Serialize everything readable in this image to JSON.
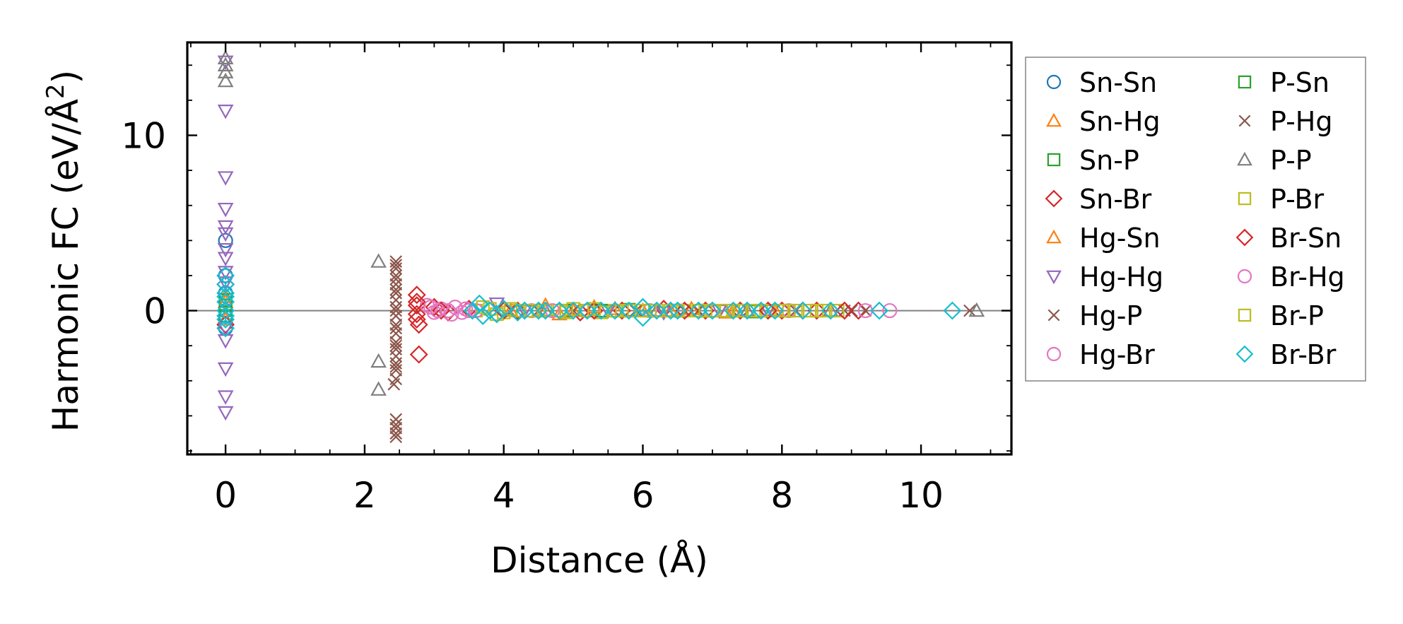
{
  "chart_data": {
    "type": "scatter",
    "title": "",
    "xlabel": "Distance (Å)",
    "ylabel_main": "Harmonic FC (eV/Å",
    "ylabel_sup": "2",
    "ylabel_close": ")",
    "xlim": [
      -0.55,
      11.3
    ],
    "ylim": [
      -8.2,
      15.3
    ],
    "xticks": [
      0,
      2,
      4,
      6,
      8,
      10
    ],
    "xtick_labels": [
      "0",
      "2",
      "4",
      "6",
      "8",
      "10"
    ],
    "yticks": [
      0,
      10
    ],
    "ytick_labels": [
      "0",
      "10"
    ],
    "x_minor_step": 0.5,
    "y_minor_step": 2,
    "hline_y": 0,
    "grid": false,
    "legend_position": "outside-right",
    "series": [
      {
        "name": "Sn-Sn",
        "marker": "circle",
        "color": "#1f77b4",
        "points": [
          [
            0,
            4.0
          ],
          [
            0,
            2.0
          ],
          [
            0,
            1.0
          ],
          [
            0,
            0.0
          ],
          [
            0,
            -1.0
          ]
        ]
      },
      {
        "name": "Sn-Hg",
        "marker": "triangle-up",
        "color": "#ff7f0e",
        "points": [
          [
            0,
            0.5
          ],
          [
            0,
            -0.5
          ],
          [
            4.1,
            0.0
          ],
          [
            4.8,
            -0.2
          ],
          [
            5.6,
            0.1
          ],
          [
            6.4,
            0.0
          ],
          [
            7.2,
            -0.1
          ]
        ]
      },
      {
        "name": "Sn-P",
        "marker": "square",
        "color": "#2ca02c",
        "points": [
          [
            0,
            0.3
          ],
          [
            0,
            -0.3
          ],
          [
            4.9,
            0.0
          ],
          [
            5.8,
            0.05
          ],
          [
            6.9,
            0.0
          ],
          [
            7.6,
            -0.05
          ]
        ]
      },
      {
        "name": "Sn-Br",
        "marker": "diamond",
        "color": "#d62728",
        "points": [
          [
            0,
            1.5
          ],
          [
            0,
            -0.8
          ],
          [
            2.75,
            0.9
          ],
          [
            2.75,
            0.3
          ],
          [
            2.75,
            -0.2
          ],
          [
            2.78,
            -0.8
          ],
          [
            2.78,
            -2.5
          ],
          [
            3.0,
            0.2
          ],
          [
            3.2,
            -0.1
          ],
          [
            3.5,
            0.1
          ],
          [
            4.2,
            0.0
          ],
          [
            5.1,
            -0.1
          ],
          [
            5.7,
            0.0
          ],
          [
            6.3,
            0.1
          ],
          [
            6.9,
            0.0
          ],
          [
            7.4,
            0.0
          ],
          [
            8.0,
            0.0
          ],
          [
            8.5,
            0.0
          ],
          [
            9.1,
            0.0
          ]
        ]
      },
      {
        "name": "Hg-Sn",
        "marker": "triangle-up",
        "color": "#ff7f0e",
        "points": [
          [
            0,
            0.8
          ],
          [
            4.6,
            0.3
          ],
          [
            5.0,
            0.0
          ],
          [
            5.3,
            0.2
          ],
          [
            6.0,
            0.0
          ],
          [
            6.7,
            0.1
          ],
          [
            7.3,
            0.0
          ],
          [
            7.9,
            0.0
          ]
        ]
      },
      {
        "name": "Hg-Hg",
        "marker": "triangle-down",
        "color": "#9467bd",
        "points": [
          [
            0,
            14.2
          ],
          [
            0,
            11.4
          ],
          [
            0,
            7.6
          ],
          [
            0,
            5.8
          ],
          [
            0,
            4.8
          ],
          [
            0,
            4.4
          ],
          [
            0,
            3.5
          ],
          [
            0,
            3.0
          ],
          [
            0,
            2.2
          ],
          [
            0,
            1.6
          ],
          [
            0,
            -1.0
          ],
          [
            0,
            -1.7
          ],
          [
            0,
            -3.3
          ],
          [
            0,
            -4.9
          ],
          [
            0,
            -5.8
          ],
          [
            3.9,
            0.4
          ],
          [
            4.3,
            0.0
          ],
          [
            5.5,
            0.0
          ],
          [
            6.3,
            -0.1
          ],
          [
            7.1,
            0.0
          ],
          [
            7.8,
            0.0
          ]
        ]
      },
      {
        "name": "Hg-P",
        "marker": "x",
        "color": "#8c564b",
        "points": [
          [
            2.45,
            2.8
          ],
          [
            2.45,
            2.4
          ],
          [
            2.45,
            2.0
          ],
          [
            2.45,
            1.5
          ],
          [
            2.45,
            1.0
          ],
          [
            2.45,
            0.6
          ],
          [
            2.45,
            0.2
          ],
          [
            2.45,
            -0.3
          ],
          [
            2.45,
            -0.8
          ],
          [
            2.45,
            -1.3
          ],
          [
            2.45,
            -1.8
          ],
          [
            2.45,
            -2.2
          ],
          [
            2.45,
            -2.6
          ],
          [
            2.45,
            -3.0
          ],
          [
            2.45,
            -3.4
          ],
          [
            2.45,
            -3.9
          ],
          [
            2.42,
            -4.2
          ],
          [
            2.45,
            -6.2
          ],
          [
            2.45,
            -6.7
          ],
          [
            2.45,
            -7.2
          ],
          [
            4.5,
            0.0
          ],
          [
            5.9,
            0.0
          ],
          [
            6.8,
            0.0
          ],
          [
            8.2,
            0.0
          ],
          [
            9.0,
            0.0
          ],
          [
            9.2,
            0.0
          ],
          [
            10.7,
            0.0
          ]
        ]
      },
      {
        "name": "Hg-Br",
        "marker": "circle",
        "color": "#e377c2",
        "points": [
          [
            2.9,
            0.3
          ],
          [
            3.0,
            -0.1
          ],
          [
            3.1,
            0.1
          ],
          [
            3.2,
            0.0
          ],
          [
            3.3,
            0.2
          ],
          [
            3.4,
            -0.1
          ],
          [
            3.5,
            0.0
          ],
          [
            4.4,
            0.0
          ],
          [
            5.2,
            0.0
          ],
          [
            6.1,
            0.0
          ],
          [
            7.0,
            0.0
          ]
        ]
      },
      {
        "name": "P-Sn",
        "marker": "square",
        "color": "#2ca02c",
        "points": [
          [
            0,
            0.6
          ],
          [
            5.4,
            0.0
          ],
          [
            6.5,
            0.0
          ],
          [
            7.4,
            0.0
          ]
        ]
      },
      {
        "name": "P-Hg",
        "marker": "x",
        "color": "#8c564b",
        "points": [
          [
            2.45,
            2.6
          ],
          [
            2.45,
            1.8
          ],
          [
            2.45,
            1.2
          ],
          [
            2.45,
            0.0
          ],
          [
            2.45,
            -1.0
          ],
          [
            2.45,
            -2.0
          ],
          [
            2.45,
            -3.2
          ],
          [
            2.45,
            -6.5
          ],
          [
            2.45,
            -7.0
          ],
          [
            5.0,
            0.0
          ],
          [
            6.6,
            0.0
          ],
          [
            8.9,
            0.0
          ]
        ]
      },
      {
        "name": "P-P",
        "marker": "triangle-up",
        "color": "#7f7f7f",
        "points": [
          [
            0,
            14.4
          ],
          [
            0,
            14.0
          ],
          [
            0,
            13.6
          ],
          [
            0,
            13.1
          ],
          [
            2.2,
            2.8
          ],
          [
            2.2,
            -2.9
          ],
          [
            2.2,
            -4.5
          ],
          [
            4.6,
            0.0
          ],
          [
            6.2,
            0.0
          ],
          [
            7.5,
            0.0
          ],
          [
            8.7,
            0.0
          ],
          [
            10.8,
            0.0
          ]
        ]
      },
      {
        "name": "P-Br",
        "marker": "square",
        "color": "#bcbd22",
        "points": [
          [
            3.6,
            0.0
          ],
          [
            3.8,
            0.1
          ],
          [
            4.0,
            -0.1
          ],
          [
            4.2,
            0.0
          ],
          [
            4.4,
            0.0
          ],
          [
            4.6,
            0.0
          ],
          [
            4.8,
            0.0
          ],
          [
            5.0,
            0.1
          ],
          [
            5.2,
            0.0
          ],
          [
            5.4,
            -0.1
          ],
          [
            5.6,
            0.0
          ],
          [
            5.8,
            0.0
          ],
          [
            6.0,
            0.0
          ],
          [
            6.2,
            0.0
          ],
          [
            6.4,
            0.0
          ],
          [
            6.6,
            0.0
          ],
          [
            6.8,
            0.0
          ],
          [
            7.0,
            0.0
          ],
          [
            7.2,
            0.0
          ],
          [
            7.4,
            0.0
          ],
          [
            7.6,
            0.0
          ],
          [
            7.8,
            0.0
          ],
          [
            8.0,
            0.0
          ],
          [
            8.2,
            0.0
          ],
          [
            8.4,
            0.0
          ],
          [
            8.6,
            0.0
          ],
          [
            8.8,
            0.0
          ]
        ]
      },
      {
        "name": "Br-Sn",
        "marker": "diamond",
        "color": "#d62728",
        "points": [
          [
            2.75,
            0.5
          ],
          [
            2.75,
            -0.5
          ],
          [
            3.1,
            0.0
          ],
          [
            4.0,
            0.0
          ],
          [
            5.3,
            0.0
          ],
          [
            6.6,
            0.0
          ],
          [
            7.8,
            0.0
          ],
          [
            8.3,
            0.0
          ],
          [
            8.9,
            0.0
          ]
        ]
      },
      {
        "name": "Br-Hg",
        "marker": "circle",
        "color": "#e377c2",
        "points": [
          [
            2.95,
            0.2
          ],
          [
            3.05,
            0.0
          ],
          [
            3.25,
            -0.2
          ],
          [
            3.45,
            0.1
          ],
          [
            3.6,
            0.0
          ],
          [
            4.7,
            0.0
          ],
          [
            6.5,
            0.0
          ],
          [
            8.1,
            0.0
          ],
          [
            9.2,
            0.0
          ],
          [
            9.55,
            0.0
          ]
        ]
      },
      {
        "name": "Br-P",
        "marker": "square",
        "color": "#bcbd22",
        "points": [
          [
            3.7,
            0.2
          ],
          [
            3.9,
            -0.2
          ],
          [
            4.1,
            0.1
          ],
          [
            4.5,
            0.0
          ],
          [
            4.9,
            -0.1
          ],
          [
            5.3,
            0.1
          ],
          [
            5.7,
            0.0
          ],
          [
            6.1,
            0.0
          ],
          [
            6.5,
            0.0
          ],
          [
            6.9,
            0.0
          ],
          [
            7.3,
            0.0
          ],
          [
            7.7,
            0.0
          ],
          [
            8.1,
            0.0
          ],
          [
            8.5,
            0.0
          ]
        ]
      },
      {
        "name": "Br-Br",
        "marker": "diamond",
        "color": "#17becf",
        "points": [
          [
            0,
            2.0
          ],
          [
            0,
            1.5
          ],
          [
            0,
            1.0
          ],
          [
            0,
            0.5
          ],
          [
            0,
            0.0
          ],
          [
            0,
            -0.5
          ],
          [
            0,
            -1.0
          ],
          [
            0,
            -0.3
          ],
          [
            0,
            0.8
          ],
          [
            3.55,
            0.0
          ],
          [
            3.65,
            0.4
          ],
          [
            3.7,
            -0.3
          ],
          [
            3.8,
            0.0
          ],
          [
            3.9,
            -0.2
          ],
          [
            4.0,
            0.1
          ],
          [
            4.2,
            -0.1
          ],
          [
            4.3,
            0.0
          ],
          [
            4.5,
            0.0
          ],
          [
            4.6,
            0.0
          ],
          [
            4.8,
            0.0
          ],
          [
            5.0,
            0.0
          ],
          [
            5.2,
            0.0
          ],
          [
            5.4,
            0.0
          ],
          [
            5.6,
            0.0
          ],
          [
            5.8,
            0.0
          ],
          [
            6.0,
            -0.4
          ],
          [
            6.0,
            0.2
          ],
          [
            6.2,
            0.0
          ],
          [
            6.4,
            0.0
          ],
          [
            6.5,
            0.0
          ],
          [
            6.8,
            0.0
          ],
          [
            7.0,
            0.0
          ],
          [
            7.3,
            0.0
          ],
          [
            7.5,
            0.0
          ],
          [
            7.7,
            0.0
          ],
          [
            7.9,
            0.0
          ],
          [
            8.3,
            0.0
          ],
          [
            8.7,
            0.0
          ],
          [
            9.4,
            0.0
          ],
          [
            10.45,
            0.0
          ]
        ]
      }
    ]
  }
}
